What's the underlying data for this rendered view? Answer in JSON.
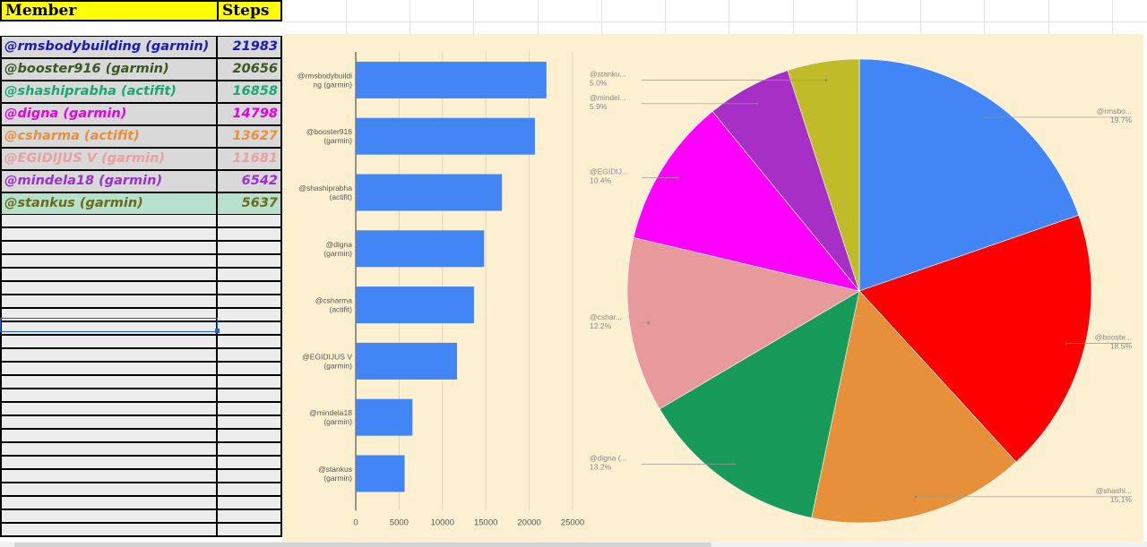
{
  "sheet": {
    "headers": {
      "member": "Member",
      "steps": "Steps"
    },
    "rows": [
      {
        "member": "@rmsbodybuilding (garmin)",
        "steps": "21983",
        "color": "#1a1ab8",
        "bg": "#d9d9d9"
      },
      {
        "member": "@booster916 (garmin)",
        "steps": "20656",
        "color": "#385723",
        "bg": "#d9d9d9"
      },
      {
        "member": "@shashiprabha (actifit)",
        "steps": "16858",
        "color": "#19a774",
        "bg": "#d9d9d9"
      },
      {
        "member": "@digna (garmin)",
        "steps": "14798",
        "color": "#e600e6",
        "bg": "#d9d9d9"
      },
      {
        "member": "@csharma (actifit)",
        "steps": "13627",
        "color": "#e6913a",
        "bg": "#d9d9d9"
      },
      {
        "member": "@EGIDIJUS V (garmin)",
        "steps": "11681",
        "color": "#e8a0a0",
        "bg": "#d9d9d9"
      },
      {
        "member": "@mindela18 (garmin)",
        "steps": "6542",
        "color": "#9b2fd4",
        "bg": "#d9d9d9"
      },
      {
        "member": "@stankus (garmin)",
        "steps": "5637",
        "color": "#6b6b1a",
        "bg": "#b7e1cd"
      }
    ]
  },
  "chart_data": [
    {
      "type": "bar",
      "orientation": "horizontal",
      "categories": [
        "@rmsbodybuilding (garmin)",
        "@booster916 (garmin)",
        "@shashiprabha (actifit)",
        "@digna (garmin)",
        "@csharma (actifit)",
        "@EGIDIJUS V (garmin)",
        "@mindela18 (garmin)",
        "@stankus (garmin)"
      ],
      "category_lines": [
        [
          "@rmsbodybuildi",
          "ng (garmin)"
        ],
        [
          "@booster916",
          "(garmin)"
        ],
        [
          "@shashiprabha",
          "(actifit)"
        ],
        [
          "@digna",
          "(garmin)"
        ],
        [
          "@csharma",
          "(actifit)"
        ],
        [
          "@EGIDIJUS V",
          "(garmin)"
        ],
        [
          "@mindela18",
          "(garmin)"
        ],
        [
          "@stankus",
          "(garmin)"
        ]
      ],
      "values": [
        21983,
        20656,
        16858,
        14798,
        13627,
        11681,
        6542,
        5637
      ],
      "xlim": [
        0,
        25000
      ],
      "xticks": [
        "0",
        "5000",
        "10000",
        "15000",
        "20000",
        "25000"
      ],
      "grid": true,
      "bar_color": "#4285f4",
      "background": "#fdf0d0",
      "title": "",
      "xlabel": "",
      "ylabel": ""
    },
    {
      "type": "pie",
      "slices": [
        {
          "label": "@rmsbo...",
          "value": 19.7,
          "pct": "19.7%",
          "color": "#4285f4"
        },
        {
          "label": "@booste...",
          "value": 18.5,
          "pct": "18.5%",
          "color": "#ff0000"
        },
        {
          "label": "@shashi...",
          "value": 15.1,
          "pct": "15.1%",
          "color": "#e6913a"
        },
        {
          "label": "@digna (...",
          "value": 13.2,
          "pct": "13.2%",
          "color": "#189b5a"
        },
        {
          "label": "@cshar...",
          "value": 12.2,
          "pct": "12.2%",
          "color": "#e89a9a"
        },
        {
          "label": "@EGIDIJ...",
          "value": 10.4,
          "pct": "10.4%",
          "color": "#ff00ff"
        },
        {
          "label": "@mindel...",
          "value": 5.9,
          "pct": "5.9%",
          "color": "#a62fc5"
        },
        {
          "label": "@stanku...",
          "value": 5.0,
          "pct": "5.0%",
          "color": "#c0bb28"
        }
      ],
      "background": "#fdf0d0",
      "title": ""
    }
  ]
}
